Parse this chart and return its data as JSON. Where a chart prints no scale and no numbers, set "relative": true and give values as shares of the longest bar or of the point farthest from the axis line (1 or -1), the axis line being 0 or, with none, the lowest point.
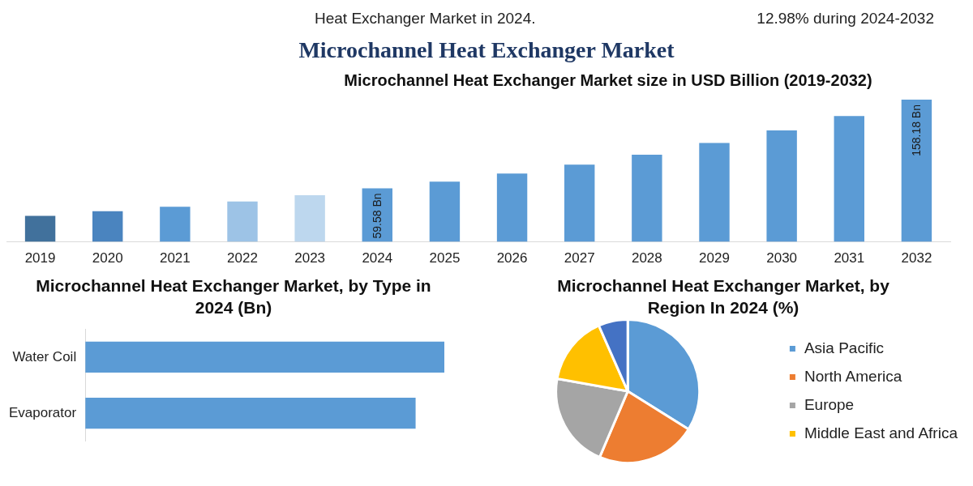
{
  "chart_data": [
    {
      "type": "other",
      "title": "Microchannel Heat Exchanger Market",
      "annotations": [
        "Heat Exchanger Market in 2024.",
        "12.98% during 2024-2032"
      ]
    },
    {
      "type": "bar",
      "title": "Microchannel Heat Exchanger Market size in USD Billion (2019-2032)",
      "categories": [
        "2019",
        "2020",
        "2021",
        "2022",
        "2023",
        "2024",
        "2025",
        "2026",
        "2027",
        "2028",
        "2029",
        "2030",
        "2031",
        "2032"
      ],
      "values": [
        29,
        34,
        39,
        45,
        52,
        59.58,
        67,
        76,
        86,
        97,
        110,
        124,
        140,
        158.18
      ],
      "colors": [
        "#41719c",
        "#4a84bf",
        "#5b9bd5",
        "#9dc3e6",
        "#bdd7ee",
        "#5b9bd5",
        "#5b9bd5",
        "#5b9bd5",
        "#5b9bd5",
        "#5b9bd5",
        "#5b9bd5",
        "#5b9bd5",
        "#5b9bd5",
        "#5b9bd5"
      ],
      "value_labels": [
        null,
        null,
        null,
        null,
        null,
        "59.58 Bn",
        null,
        null,
        null,
        null,
        null,
        null,
        null,
        "158.18 Bn"
      ]
    },
    {
      "type": "bar",
      "orientation": "horizontal",
      "relative": true,
      "title": "Microchannel Heat Exchanger Market, by Type in 2024 (Bn)",
      "categories": [
        "Water Coil",
        "Evaporator"
      ],
      "values": [
        1,
        0.92
      ],
      "color": "#5b9bd5"
    },
    {
      "type": "pie",
      "title": "Microchannel Heat Exchanger Market, by Region In 2024 (%)",
      "categories": [
        "Asia Pacific",
        "North America",
        "Europe",
        "Middle East and Africa",
        null
      ],
      "values": [
        33.9,
        22.5,
        21.4,
        15.6,
        6.6
      ],
      "colors": [
        "#5b9bd5",
        "#ed7d31",
        "#a5a5a5",
        "#ffc000",
        "#4472c4"
      ],
      "legend": "right"
    }
  ]
}
